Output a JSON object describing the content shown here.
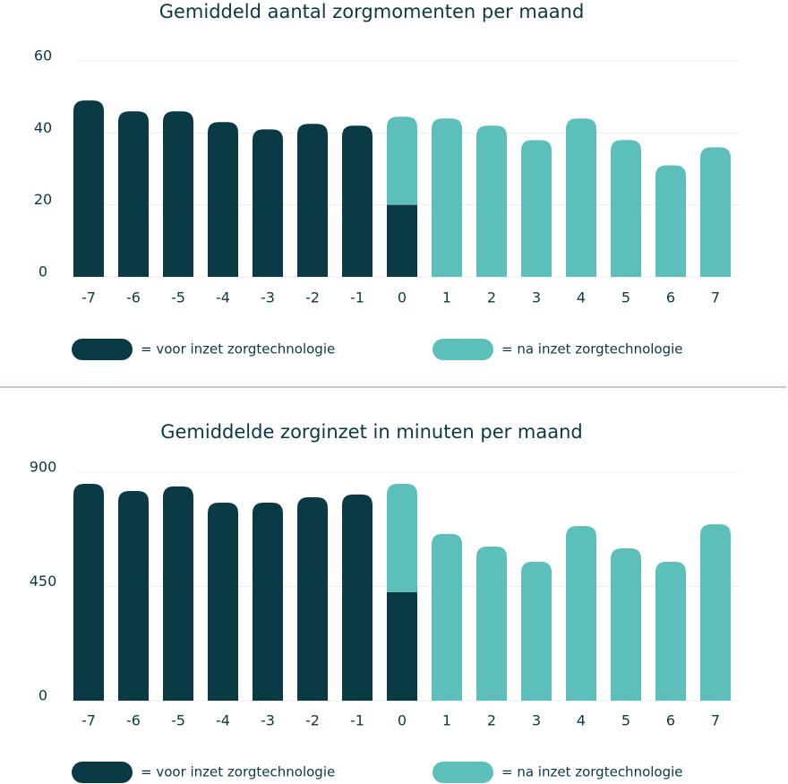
{
  "chart_data": [
    {
      "type": "bar",
      "stacked": true,
      "title": "Gemiddeld aantal zorgmomenten per maand",
      "categories": [
        "-7",
        "-6",
        "-5",
        "-4",
        "-3",
        "-2",
        "-1",
        "0",
        "1",
        "2",
        "3",
        "4",
        "5",
        "6",
        "7"
      ],
      "series": [
        {
          "name": "= voor inzet zorgtechnologie",
          "color": "#0a3a44",
          "values": [
            49,
            46,
            46,
            43,
            41,
            42.5,
            42,
            20,
            null,
            null,
            null,
            null,
            null,
            null,
            null
          ]
        },
        {
          "name": "= na inzet zorgtechnologie",
          "color": "#5dbfba",
          "values": [
            null,
            null,
            null,
            null,
            null,
            null,
            null,
            24.5,
            44,
            42,
            38,
            44,
            38,
            31,
            36
          ]
        }
      ],
      "ylim": [
        0,
        60
      ],
      "yticks": [
        0,
        20,
        40,
        60
      ],
      "grid": true
    },
    {
      "type": "bar",
      "stacked": true,
      "title": "Gemiddelde zorginzet in minuten per maand",
      "categories": [
        "-7",
        "-6",
        "-5",
        "-4",
        "-3",
        "-2",
        "-1",
        "0",
        "1",
        "2",
        "3",
        "4",
        "5",
        "6",
        "7"
      ],
      "series": [
        {
          "name": "= voor inzet zorgtechnologie",
          "color": "#0a3a44",
          "values": [
            854,
            826,
            844,
            780,
            780,
            801,
            812,
            427,
            null,
            null,
            null,
            null,
            null,
            null,
            null
          ]
        },
        {
          "name": "= na inzet zorgtechnologie",
          "color": "#5dbfba",
          "values": [
            null,
            null,
            null,
            null,
            null,
            null,
            null,
            427,
            657,
            607,
            547,
            688,
            600,
            547,
            695
          ]
        }
      ],
      "ylim": [
        0,
        900
      ],
      "yticks": [
        0,
        450,
        900
      ],
      "grid": true
    }
  ]
}
